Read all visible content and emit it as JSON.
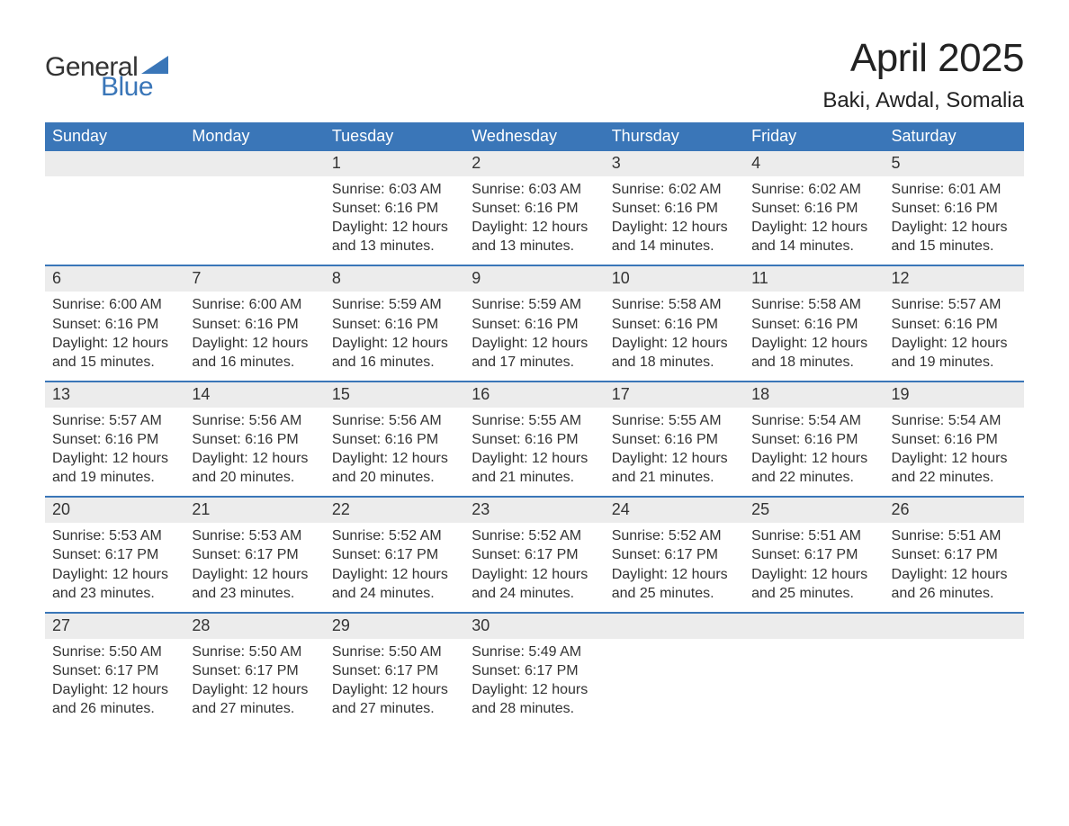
{
  "logo": {
    "word1": "General",
    "word2": "Blue",
    "sail_color": "#3a76b8"
  },
  "title": {
    "month": "April 2025",
    "location": "Baki, Awdal, Somalia"
  },
  "colors": {
    "header_bg": "#3a76b8",
    "header_text": "#ffffff",
    "band_bg": "#ececec",
    "band_text": "#333333",
    "body_text": "#333333",
    "week_border": "#3a76b8",
    "page_bg": "#ffffff"
  },
  "typography": {
    "title_fontsize": 44,
    "location_fontsize": 24,
    "dow_fontsize": 18,
    "daynum_fontsize": 18,
    "body_fontsize": 16
  },
  "layout": {
    "columns": 7,
    "rows": 5
  },
  "labels": {
    "sunrise": "Sunrise:",
    "sunset": "Sunset:",
    "daylight": "Daylight:"
  },
  "days_of_week": [
    "Sunday",
    "Monday",
    "Tuesday",
    "Wednesday",
    "Thursday",
    "Friday",
    "Saturday"
  ],
  "weeks": [
    [
      {
        "num": "",
        "sunrise": "",
        "sunset": "",
        "daylight": ""
      },
      {
        "num": "",
        "sunrise": "",
        "sunset": "",
        "daylight": ""
      },
      {
        "num": "1",
        "sunrise": "6:03 AM",
        "sunset": "6:16 PM",
        "daylight": "12 hours and 13 minutes."
      },
      {
        "num": "2",
        "sunrise": "6:03 AM",
        "sunset": "6:16 PM",
        "daylight": "12 hours and 13 minutes."
      },
      {
        "num": "3",
        "sunrise": "6:02 AM",
        "sunset": "6:16 PM",
        "daylight": "12 hours and 14 minutes."
      },
      {
        "num": "4",
        "sunrise": "6:02 AM",
        "sunset": "6:16 PM",
        "daylight": "12 hours and 14 minutes."
      },
      {
        "num": "5",
        "sunrise": "6:01 AM",
        "sunset": "6:16 PM",
        "daylight": "12 hours and 15 minutes."
      }
    ],
    [
      {
        "num": "6",
        "sunrise": "6:00 AM",
        "sunset": "6:16 PM",
        "daylight": "12 hours and 15 minutes."
      },
      {
        "num": "7",
        "sunrise": "6:00 AM",
        "sunset": "6:16 PM",
        "daylight": "12 hours and 16 minutes."
      },
      {
        "num": "8",
        "sunrise": "5:59 AM",
        "sunset": "6:16 PM",
        "daylight": "12 hours and 16 minutes."
      },
      {
        "num": "9",
        "sunrise": "5:59 AM",
        "sunset": "6:16 PM",
        "daylight": "12 hours and 17 minutes."
      },
      {
        "num": "10",
        "sunrise": "5:58 AM",
        "sunset": "6:16 PM",
        "daylight": "12 hours and 18 minutes."
      },
      {
        "num": "11",
        "sunrise": "5:58 AM",
        "sunset": "6:16 PM",
        "daylight": "12 hours and 18 minutes."
      },
      {
        "num": "12",
        "sunrise": "5:57 AM",
        "sunset": "6:16 PM",
        "daylight": "12 hours and 19 minutes."
      }
    ],
    [
      {
        "num": "13",
        "sunrise": "5:57 AM",
        "sunset": "6:16 PM",
        "daylight": "12 hours and 19 minutes."
      },
      {
        "num": "14",
        "sunrise": "5:56 AM",
        "sunset": "6:16 PM",
        "daylight": "12 hours and 20 minutes."
      },
      {
        "num": "15",
        "sunrise": "5:56 AM",
        "sunset": "6:16 PM",
        "daylight": "12 hours and 20 minutes."
      },
      {
        "num": "16",
        "sunrise": "5:55 AM",
        "sunset": "6:16 PM",
        "daylight": "12 hours and 21 minutes."
      },
      {
        "num": "17",
        "sunrise": "5:55 AM",
        "sunset": "6:16 PM",
        "daylight": "12 hours and 21 minutes."
      },
      {
        "num": "18",
        "sunrise": "5:54 AM",
        "sunset": "6:16 PM",
        "daylight": "12 hours and 22 minutes."
      },
      {
        "num": "19",
        "sunrise": "5:54 AM",
        "sunset": "6:16 PM",
        "daylight": "12 hours and 22 minutes."
      }
    ],
    [
      {
        "num": "20",
        "sunrise": "5:53 AM",
        "sunset": "6:17 PM",
        "daylight": "12 hours and 23 minutes."
      },
      {
        "num": "21",
        "sunrise": "5:53 AM",
        "sunset": "6:17 PM",
        "daylight": "12 hours and 23 minutes."
      },
      {
        "num": "22",
        "sunrise": "5:52 AM",
        "sunset": "6:17 PM",
        "daylight": "12 hours and 24 minutes."
      },
      {
        "num": "23",
        "sunrise": "5:52 AM",
        "sunset": "6:17 PM",
        "daylight": "12 hours and 24 minutes."
      },
      {
        "num": "24",
        "sunrise": "5:52 AM",
        "sunset": "6:17 PM",
        "daylight": "12 hours and 25 minutes."
      },
      {
        "num": "25",
        "sunrise": "5:51 AM",
        "sunset": "6:17 PM",
        "daylight": "12 hours and 25 minutes."
      },
      {
        "num": "26",
        "sunrise": "5:51 AM",
        "sunset": "6:17 PM",
        "daylight": "12 hours and 26 minutes."
      }
    ],
    [
      {
        "num": "27",
        "sunrise": "5:50 AM",
        "sunset": "6:17 PM",
        "daylight": "12 hours and 26 minutes."
      },
      {
        "num": "28",
        "sunrise": "5:50 AM",
        "sunset": "6:17 PM",
        "daylight": "12 hours and 27 minutes."
      },
      {
        "num": "29",
        "sunrise": "5:50 AM",
        "sunset": "6:17 PM",
        "daylight": "12 hours and 27 minutes."
      },
      {
        "num": "30",
        "sunrise": "5:49 AM",
        "sunset": "6:17 PM",
        "daylight": "12 hours and 28 minutes."
      },
      {
        "num": "",
        "sunrise": "",
        "sunset": "",
        "daylight": ""
      },
      {
        "num": "",
        "sunrise": "",
        "sunset": "",
        "daylight": ""
      },
      {
        "num": "",
        "sunrise": "",
        "sunset": "",
        "daylight": ""
      }
    ]
  ]
}
